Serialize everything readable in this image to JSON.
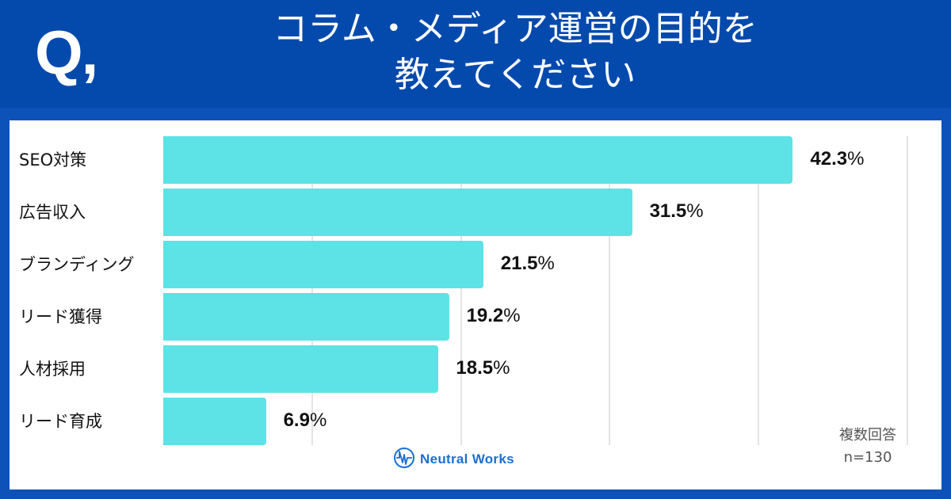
{
  "header": {
    "q_mark": "Q,",
    "title_line1": "コラム・メディア運営の目的を",
    "title_line2": "教えてください"
  },
  "chart_data": {
    "type": "bar",
    "orientation": "horizontal",
    "title": "コラム・メディア運営の目的を教えてください",
    "categories": [
      "SEO対策",
      "広告収入",
      "ブランディング",
      "リード獲得",
      "人材採用",
      "リード育成"
    ],
    "values": [
      42.3,
      31.5,
      21.5,
      19.2,
      18.5,
      6.9
    ],
    "value_labels": [
      "42.3",
      "31.5",
      "21.5",
      "19.2",
      "18.5",
      "6.9"
    ],
    "unit": "%",
    "xlabel": "",
    "ylabel": "",
    "xlim": [
      0,
      50
    ],
    "grid": true,
    "gridline_step": 10,
    "bar_color": "#5de2e6",
    "legend": null
  },
  "footnote": {
    "multi_answer": "複数回答",
    "sample_size": "n=130"
  },
  "brand": {
    "name": "Neutral Works",
    "icon": "neutral-works-logo-icon",
    "color": "#1a6fd4"
  },
  "colors": {
    "header_bg": "#044aad",
    "frame_bg": "#0c52b9",
    "panel_bg": "#ffffff",
    "bar": "#5de2e6",
    "grid": "#e4e4e4"
  }
}
